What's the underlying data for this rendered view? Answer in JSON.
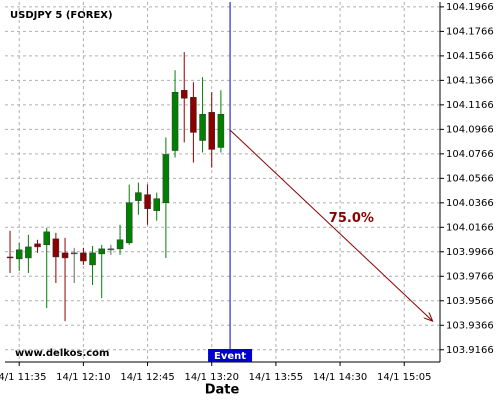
{
  "chart_data": {
    "type": "candlestick",
    "title": "USDJPY 5 (FOREX)",
    "watermark": "www.delkos.com",
    "x_label": "Date",
    "x": [
      -1,
      0,
      1,
      2,
      3,
      4,
      5,
      6,
      7,
      8,
      9,
      10,
      11,
      12,
      13,
      14,
      15,
      16,
      17,
      18,
      19,
      20,
      21,
      22
    ],
    "open": [
      103.9924,
      103.9908,
      103.9916,
      104.0031,
      104.0023,
      104.0072,
      103.9957,
      103.9957,
      103.9957,
      103.9859,
      103.9949,
      103.999,
      103.999,
      104.0039,
      104.0384,
      104.0433,
      104.0302,
      104.0367,
      104.0793,
      104.1285,
      104.1228,
      104.0875,
      104.1105,
      104.0818
    ],
    "high": [
      104.0137,
      104.0039,
      104.0105,
      104.0064,
      104.0162,
      104.0121,
      104.008,
      103.9998,
      103.9998,
      104.0014,
      104.0023,
      104.0023,
      104.0187,
      104.0515,
      104.0531,
      104.0515,
      104.0449,
      104.09,
      104.1449,
      104.1597,
      104.1351,
      104.1392,
      104.1269,
      104.1285
    ],
    "low": [
      103.9793,
      103.981,
      103.9793,
      103.9957,
      103.9506,
      103.9711,
      103.9399,
      103.9711,
      103.9859,
      103.9695,
      103.9588,
      103.9941,
      103.9941,
      104.0023,
      104.0269,
      104.0187,
      104.022,
      103.9916,
      104.0736,
      104.0859,
      104.0695,
      104.0777,
      104.0654,
      104.0777
    ],
    "close": [
      103.9916,
      103.9982,
      104.0006,
      104.0006,
      104.0129,
      103.9924,
      103.9916,
      103.9957,
      103.9891,
      103.9957,
      103.999,
      103.999,
      104.0064,
      104.0367,
      104.0449,
      104.0318,
      104.04,
      104.0761,
      104.1269,
      104.122,
      104.0941,
      104.1089,
      104.0802,
      104.1089
    ],
    "up_color": "#008000",
    "down_color": "#8b0000",
    "xlim": [
      -1.55,
      45.9
    ],
    "xticks": [
      {
        "value": 0,
        "label": "14/1 11:35"
      },
      {
        "value": 7,
        "label": "14/1 12:10"
      },
      {
        "value": 14,
        "label": "14/1 12:45"
      },
      {
        "value": 21,
        "label": "14/1 13:20"
      },
      {
        "value": 28,
        "label": "14/1 13:55"
      },
      {
        "value": 35,
        "label": "14/1 14:30"
      },
      {
        "value": 42,
        "label": "14/1 15:05"
      }
    ],
    "ylim": [
      103.9066,
      104.2006
    ],
    "yticks": [
      104.1966,
      104.1766,
      104.1566,
      104.1366,
      104.1166,
      104.0966,
      104.0766,
      104.0566,
      104.0366,
      104.0166,
      103.9966,
      103.9766,
      103.9566,
      103.9366,
      103.9166
    ],
    "grid": true,
    "event": {
      "x": 23,
      "label": "Event",
      "color": "#0000cc"
    },
    "projection": {
      "x": [
        23,
        45.1
      ],
      "values": [
        104.096,
        103.94
      ],
      "label": "75.0%",
      "color": "#8b0000"
    }
  }
}
